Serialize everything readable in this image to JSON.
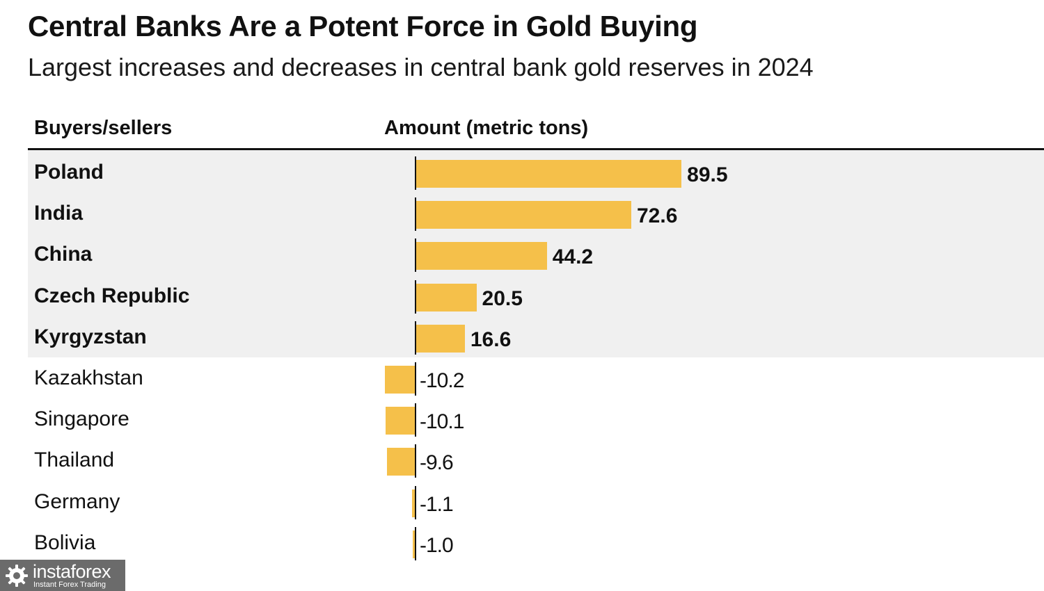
{
  "chart_data": {
    "type": "bar",
    "orientation": "horizontal",
    "title": "Central Banks Are a Potent Force in Gold Buying",
    "subtitle": "Largest increases and decreases in central bank gold reserves in 2024",
    "column_headers": {
      "category": "Buyers/sellers",
      "value": "Amount (metric tons)"
    },
    "categories": [
      "Poland",
      "India",
      "China",
      "Czech Republic",
      "Kyrgyzstan",
      "Kazakhstan",
      "Singapore",
      "Thailand",
      "Germany",
      "Bolivia"
    ],
    "values": [
      89.5,
      72.6,
      44.2,
      20.5,
      16.6,
      -10.2,
      -10.1,
      -9.6,
      -1.1,
      -1.0
    ],
    "value_labels": [
      "89.5",
      "72.6",
      "44.2",
      "20.5",
      "16.6",
      "-10.2",
      "-10.1",
      "-9.6",
      "-1.1",
      "-1.0"
    ],
    "group_highlight": "buyers shaded light gray",
    "bar_color": "#f5c04a",
    "band_color": "#f0f0f0",
    "legend": "none",
    "grid": false
  },
  "watermark": {
    "brand": "instaforex",
    "tagline": "Instant Forex Trading",
    "icon": "gear-logo-icon"
  }
}
